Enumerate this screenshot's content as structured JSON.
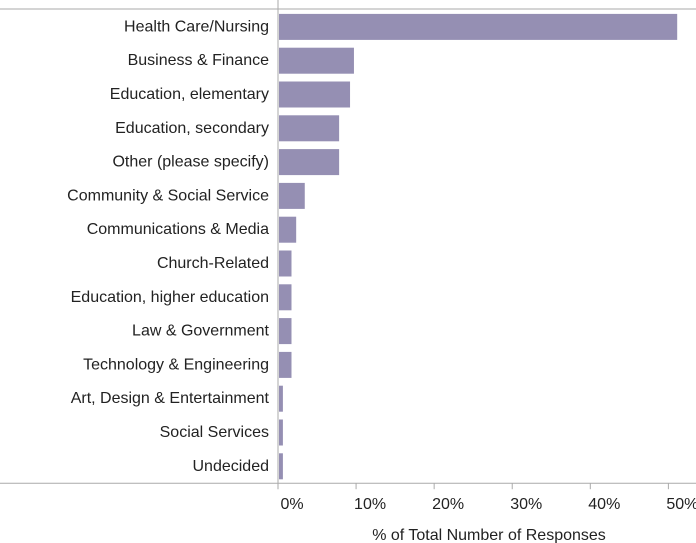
{
  "chart_data": {
    "type": "bar",
    "orientation": "horizontal",
    "categories": [
      "Health Care/Nursing",
      "Business & Finance",
      "Education, elementary",
      "Education, secondary",
      "Other (please specify)",
      "Community & Social Service",
      "Communications & Media",
      "Church-Related",
      "Education, higher education",
      "Law & Government",
      "Technology & Engineering",
      "Art, Design & Entertainment",
      "Social Services",
      "Undecided"
    ],
    "values": [
      51.0,
      9.6,
      9.1,
      7.7,
      7.7,
      3.3,
      2.2,
      1.6,
      1.6,
      1.6,
      1.6,
      0.5,
      0.5,
      0.5
    ],
    "xlim": [
      0,
      52
    ],
    "xticks": [
      0,
      10,
      20,
      30,
      40,
      50
    ],
    "xtick_labels": [
      "0%",
      "10%",
      "20%",
      "30%",
      "40%",
      "50%"
    ],
    "xlabel": "% of Total Number of Responses",
    "ylabel": "",
    "title": "",
    "grid": false,
    "bar_color": "#958fb3",
    "axis_color": "#aaaaaa"
  }
}
